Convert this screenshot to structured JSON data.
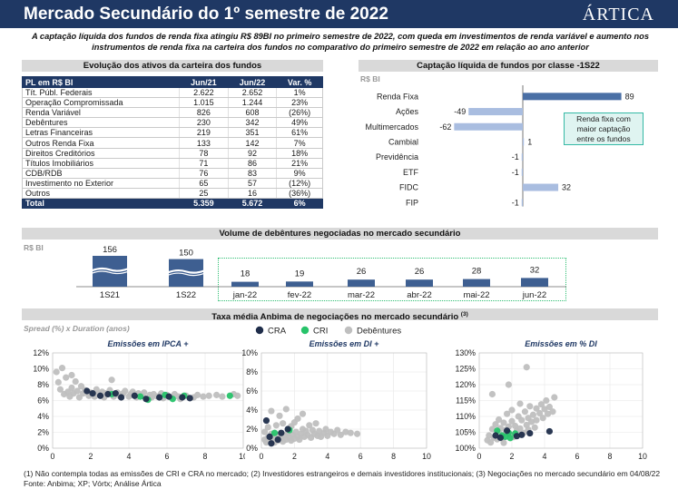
{
  "header": {
    "title": "Mercado Secundário do 1º semestre de 2022",
    "logo": "ÁRTICA"
  },
  "subtitle": "A captação líquida dos fundos de renda fixa atingiu R$ 89BI no primeiro semestre de 2022, com queda em investimentos de renda variável e aumento nos instrumentos de renda fixa na carteira dos fundos no comparativo do primeiro semestre de 2022 em relação ao ano anterior",
  "assets_section": {
    "title": "Evolução dos ativos da carteira dos fundos",
    "headers": [
      "PL em R$ BI",
      "Jun/21",
      "Jun/22",
      "Var. %"
    ],
    "rows": [
      [
        "Tít. Públ. Federais",
        "2.622",
        "2.652",
        "1%"
      ],
      [
        "Operação Compromissada",
        "1.015",
        "1.244",
        "23%"
      ],
      [
        "Renda Variável",
        "826",
        "608",
        "(26%)"
      ],
      [
        "Debêntures",
        "230",
        "342",
        "49%"
      ],
      [
        "Letras Financeiras",
        "219",
        "351",
        "61%"
      ],
      [
        "Outros Renda Fixa",
        "133",
        "142",
        "7%"
      ],
      [
        "Direitos Creditórios",
        "78",
        "92",
        "18%"
      ],
      [
        "Títulos Imobiliários",
        "71",
        "86",
        "21%"
      ],
      [
        "CDB/RDB",
        "76",
        "83",
        "9%"
      ],
      [
        "Investimento no Exterior",
        "65",
        "57",
        "(12%)"
      ],
      [
        "Outros",
        "25",
        "16",
        "(36%)"
      ]
    ],
    "total": [
      "Total",
      "5.359",
      "5.672",
      "6%"
    ]
  },
  "unit_label": "R$ BI",
  "captacao_section": {
    "title": "Captação líquida de fundos por classe -1S22",
    "callout": [
      "Renda fixa com",
      "maior captação",
      "entre os fundos"
    ]
  },
  "debentures_section": {
    "title": "Volume de debêntures negociadas no mercado secundário"
  },
  "taxa_section": {
    "title": "Taxa média Anbima de negociações no mercado secundário",
    "title_sup": "(3)",
    "subtitle": "Spread (%) x Duration (anos)"
  },
  "legend": [
    {
      "name": "CRA",
      "color": "#1f2d4a"
    },
    {
      "name": "CRI",
      "color": "#27c36a"
    },
    {
      "name": "Debêntures",
      "color": "#bfbfbf"
    }
  ],
  "footnote": {
    "line1": "(1) Não contempla todas as emissões de CRI e CRA no mercado; (2) Investidores estrangeiros e demais investidores institucionais; (3) Negociações no mercado secundário em 04/08/22",
    "line2": "Fonte: Anbima; XP; Vórtx; Análise Ártica"
  },
  "colors": {
    "navy": "#1f3864",
    "bar_blue": "#4a6fa5",
    "bar_light": "#a9bde0",
    "cra": "#1f2d4a",
    "cri": "#27c36a",
    "deb": "#bfbfbf"
  },
  "chart_data": [
    {
      "type": "bar",
      "orientation": "horizontal",
      "title": "Captação líquida de fundos por classe -1S22",
      "ylabel": "R$ BI",
      "categories": [
        "Renda Fixa",
        "Ações",
        "Multimercados",
        "Cambial",
        "Previdência",
        "ETF",
        "FIDC",
        "FIP"
      ],
      "values": [
        89,
        -49,
        -62,
        1,
        -1,
        -1,
        32,
        -1
      ],
      "xlim": [
        -62,
        89
      ]
    },
    {
      "type": "bar",
      "title": "Volume de debêntures negociadas no mercado secundário",
      "ylabel": "R$ BI",
      "categories": [
        "1S21",
        "1S22",
        "jan-22",
        "fev-22",
        "mar-22",
        "abr-22",
        "mai-22",
        "jun-22"
      ],
      "values": [
        156,
        150,
        18,
        19,
        26,
        26,
        28,
        32
      ],
      "axis_break": true
    },
    {
      "type": "scatter",
      "title": "Emissões em IPCA +",
      "xlim": [
        0,
        10
      ],
      "ylim": [
        0,
        12
      ],
      "xticks": [
        "0",
        "2",
        "4",
        "6",
        "8",
        "10"
      ],
      "yticks": [
        "0%",
        "2%",
        "4%",
        "6%",
        "8%",
        "10%",
        "12%"
      ],
      "series": [
        {
          "name": "CRA",
          "points": [
            [
              1.8,
              7.2
            ],
            [
              2.1,
              6.9
            ],
            [
              2.5,
              6.6
            ],
            [
              2.9,
              6.8
            ],
            [
              3.3,
              6.9
            ],
            [
              3.6,
              6.4
            ],
            [
              4.3,
              6.6
            ],
            [
              4.9,
              6.2
            ],
            [
              5.6,
              6.4
            ],
            [
              6.1,
              6.5
            ],
            [
              6.8,
              6.4
            ],
            [
              7.2,
              6.3
            ]
          ]
        },
        {
          "name": "CRI",
          "points": [
            [
              3.1,
              6.8
            ],
            [
              4.6,
              6.5
            ],
            [
              5.0,
              6.1
            ],
            [
              5.9,
              6.7
            ],
            [
              6.3,
              6.2
            ],
            [
              6.9,
              6.6
            ],
            [
              9.3,
              6.6
            ]
          ]
        },
        {
          "name": "Debêntures",
          "points": [
            [
              0.2,
              9.6
            ],
            [
              0.3,
              8.3
            ],
            [
              0.4,
              7.4
            ],
            [
              0.5,
              10.1
            ],
            [
              0.6,
              6.8
            ],
            [
              0.7,
              8.9
            ],
            [
              0.8,
              7.1
            ],
            [
              0.9,
              6.5
            ],
            [
              1.0,
              9.2
            ],
            [
              1.0,
              7.6
            ],
            [
              1.1,
              6.9
            ],
            [
              1.2,
              8.4
            ],
            [
              1.3,
              7.2
            ],
            [
              1.4,
              6.4
            ],
            [
              1.5,
              7.8
            ],
            [
              1.6,
              6.9
            ],
            [
              1.7,
              7.3
            ],
            [
              1.9,
              6.6
            ],
            [
              2.0,
              7.0
            ],
            [
              2.2,
              6.5
            ],
            [
              2.3,
              7.4
            ],
            [
              2.4,
              6.8
            ],
            [
              2.6,
              7.1
            ],
            [
              2.7,
              6.4
            ],
            [
              2.8,
              6.9
            ],
            [
              3.0,
              7.3
            ],
            [
              3.1,
              8.6
            ],
            [
              3.2,
              6.5
            ],
            [
              3.4,
              7.0
            ],
            [
              3.5,
              6.6
            ],
            [
              3.7,
              6.9
            ],
            [
              3.8,
              7.2
            ],
            [
              4.0,
              6.5
            ],
            [
              4.1,
              6.8
            ],
            [
              4.2,
              7.1
            ],
            [
              4.4,
              6.4
            ],
            [
              4.5,
              6.9
            ],
            [
              4.7,
              6.6
            ],
            [
              4.8,
              7.0
            ],
            [
              5.1,
              6.7
            ],
            [
              5.2,
              6.4
            ],
            [
              5.3,
              6.8
            ],
            [
              5.5,
              6.5
            ],
            [
              5.7,
              6.9
            ],
            [
              5.8,
              6.3
            ],
            [
              6.0,
              6.7
            ],
            [
              6.2,
              6.4
            ],
            [
              6.4,
              6.8
            ],
            [
              6.6,
              6.5
            ],
            [
              6.7,
              6.2
            ],
            [
              7.0,
              6.6
            ],
            [
              7.4,
              6.4
            ],
            [
              7.6,
              6.7
            ],
            [
              7.9,
              6.5
            ],
            [
              8.2,
              6.6
            ],
            [
              8.6,
              6.7
            ],
            [
              8.9,
              6.5
            ],
            [
              9.5,
              6.8
            ],
            [
              9.7,
              6.6
            ]
          ]
        }
      ]
    },
    {
      "type": "scatter",
      "title": "Emissões em DI +",
      "xlim": [
        0,
        10
      ],
      "ylim": [
        0,
        10
      ],
      "xticks": [
        "0",
        "2",
        "4",
        "6",
        "8",
        "10"
      ],
      "yticks": [
        "0%",
        "2%",
        "4%",
        "6%",
        "8%",
        "10%"
      ],
      "series": [
        {
          "name": "CRA",
          "points": [
            [
              0.3,
              2.9
            ],
            [
              0.5,
              1.2
            ],
            [
              0.6,
              0.5
            ],
            [
              1.2,
              1.6
            ],
            [
              1.6,
              2.0
            ],
            [
              1.0,
              0.9
            ]
          ]
        },
        {
          "name": "CRI",
          "points": [
            [
              0.8,
              1.6
            ],
            [
              1.7,
              1.9
            ]
          ]
        },
        {
          "name": "Debêntures",
          "points": [
            [
              0.2,
              0.9
            ],
            [
              0.2,
              1.7
            ],
            [
              0.3,
              0.6
            ],
            [
              0.4,
              2.2
            ],
            [
              0.4,
              1.1
            ],
            [
              0.5,
              0.8
            ],
            [
              0.6,
              1.5
            ],
            [
              0.6,
              3.9
            ],
            [
              0.7,
              1.0
            ],
            [
              0.8,
              0.6
            ],
            [
              0.9,
              1.2
            ],
            [
              0.9,
              2.4
            ],
            [
              1.0,
              0.8
            ],
            [
              1.1,
              1.4
            ],
            [
              1.1,
              3.4
            ],
            [
              1.2,
              1.0
            ],
            [
              1.3,
              0.7
            ],
            [
              1.3,
              2.6
            ],
            [
              1.4,
              1.3
            ],
            [
              1.5,
              0.9
            ],
            [
              1.5,
              4.1
            ],
            [
              1.6,
              1.6
            ],
            [
              1.7,
              1.1
            ],
            [
              1.8,
              0.8
            ],
            [
              1.8,
              2.3
            ],
            [
              1.9,
              1.4
            ],
            [
              2.0,
              1.0
            ],
            [
              2.0,
              2.7
            ],
            [
              2.1,
              1.7
            ],
            [
              2.2,
              1.2
            ],
            [
              2.2,
              3.1
            ],
            [
              2.3,
              0.9
            ],
            [
              2.4,
              1.5
            ],
            [
              2.5,
              2.0
            ],
            [
              2.5,
              3.6
            ],
            [
              2.6,
              1.2
            ],
            [
              2.7,
              1.8
            ],
            [
              2.8,
              1.4
            ],
            [
              2.9,
              2.4
            ],
            [
              3.0,
              1.1
            ],
            [
              3.1,
              1.9
            ],
            [
              3.2,
              1.5
            ],
            [
              3.3,
              2.6
            ],
            [
              3.4,
              1.3
            ],
            [
              3.5,
              1.8
            ],
            [
              3.6,
              1.2
            ],
            [
              3.8,
              1.6
            ],
            [
              3.9,
              2.0
            ],
            [
              4.0,
              1.3
            ],
            [
              4.2,
              1.7
            ],
            [
              4.4,
              1.5
            ],
            [
              4.6,
              1.9
            ],
            [
              4.8,
              1.4
            ],
            [
              5.1,
              1.7
            ],
            [
              5.4,
              1.6
            ],
            [
              5.8,
              1.5
            ]
          ]
        }
      ]
    },
    {
      "type": "scatter",
      "title": "Emissões em % DI",
      "xlim": [
        0,
        10
      ],
      "ylim": [
        100,
        130
      ],
      "xticks": [
        "0",
        "2",
        "4",
        "6",
        "8",
        "10"
      ],
      "yticks": [
        "100%",
        "105%",
        "110%",
        "115%",
        "120%",
        "125%",
        "130%"
      ],
      "series": [
        {
          "name": "CRA",
          "points": [
            [
              1.0,
              104.0
            ],
            [
              1.3,
              103.3
            ],
            [
              1.7,
              105.5
            ],
            [
              2.3,
              103.8
            ],
            [
              2.6,
              104.2
            ],
            [
              3.1,
              104.7
            ],
            [
              4.3,
              105.3
            ]
          ]
        },
        {
          "name": "CRI",
          "points": [
            [
              1.1,
              105.5
            ],
            [
              1.4,
              104.0
            ],
            [
              1.6,
              103.6
            ],
            [
              1.8,
              104.8
            ],
            [
              2.2,
              104.6
            ],
            [
              1.9,
              103.2
            ]
          ]
        },
        {
          "name": "Debêntures",
          "points": [
            [
              0.5,
              102.5
            ],
            [
              0.6,
              104.0
            ],
            [
              0.7,
              101.8
            ],
            [
              0.8,
              106.0
            ],
            [
              0.9,
              103.3
            ],
            [
              1.0,
              107.5
            ],
            [
              1.1,
              102.8
            ],
            [
              1.2,
              105.0
            ],
            [
              1.2,
              109.0
            ],
            [
              1.3,
              106.3
            ],
            [
              1.4,
              103.0
            ],
            [
              1.5,
              108.0
            ],
            [
              1.5,
              101.7
            ],
            [
              1.6,
              105.7
            ],
            [
              1.7,
              110.8
            ],
            [
              1.8,
              106.8
            ],
            [
              1.9,
              104.3
            ],
            [
              2.0,
              108.5
            ],
            [
              2.0,
              112.0
            ],
            [
              2.1,
              103.5
            ],
            [
              2.2,
              107.0
            ],
            [
              2.3,
              105.5
            ],
            [
              2.4,
              110.0
            ],
            [
              2.5,
              106.2
            ],
            [
              2.5,
              114.0
            ],
            [
              2.6,
              108.8
            ],
            [
              2.7,
              104.8
            ],
            [
              2.8,
              111.5
            ],
            [
              2.9,
              107.3
            ],
            [
              3.0,
              109.5
            ],
            [
              3.0,
              105.8
            ],
            [
              3.1,
              113.2
            ],
            [
              3.2,
              108.3
            ],
            [
              3.3,
              110.5
            ],
            [
              3.4,
              106.5
            ],
            [
              3.5,
              112.5
            ],
            [
              3.5,
              108.8
            ],
            [
              3.7,
              111.0
            ],
            [
              3.8,
              113.8
            ],
            [
              3.9,
              109.5
            ],
            [
              4.0,
              112.3
            ],
            [
              4.1,
              115.0
            ],
            [
              4.2,
              110.8
            ],
            [
              4.3,
              113.0
            ],
            [
              4.5,
              111.5
            ],
            [
              4.6,
              116.0
            ],
            [
              0.8,
              117.0
            ],
            [
              1.8,
              120.0
            ],
            [
              2.9,
              125.5
            ]
          ]
        }
      ]
    }
  ]
}
